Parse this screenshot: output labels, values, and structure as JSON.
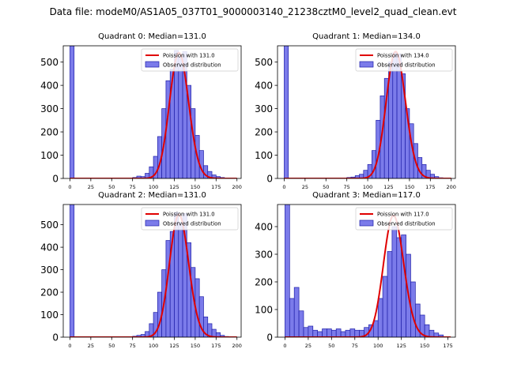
{
  "figure": {
    "title": "Data file: modeM0/AS1A05_037T01_9000003140_21238cztM0_level2_quad_clean.evt"
  },
  "colors": {
    "bar_fill": "#7b7bea",
    "bar_edge": "#1f1fa8",
    "poisson_line": "#e00000"
  },
  "chart_data": [
    {
      "type": "bar",
      "title": "Quadrant 0: Median=131.0",
      "xlim": [
        -8,
        205
      ],
      "ylim": [
        0,
        570
      ],
      "xticks": [
        0,
        25,
        50,
        75,
        100,
        125,
        150,
        175,
        200
      ],
      "yticks": [
        0,
        100,
        200,
        300,
        400,
        500
      ],
      "bin_width": 5,
      "legend": {
        "position": "top-right",
        "line_label": "Poission with 131.0",
        "hist_label": "Observed distribution"
      },
      "poisson_mean": 131.0,
      "poisson_peak": 540,
      "bins": [
        [
          0,
          570
        ],
        [
          75,
          4
        ],
        [
          80,
          10
        ],
        [
          85,
          8
        ],
        [
          90,
          22
        ],
        [
          95,
          50
        ],
        [
          100,
          95
        ],
        [
          105,
          180
        ],
        [
          110,
          300
        ],
        [
          115,
          420
        ],
        [
          120,
          470
        ],
        [
          125,
          550
        ],
        [
          130,
          520
        ],
        [
          135,
          545
        ],
        [
          140,
          400
        ],
        [
          145,
          300
        ],
        [
          150,
          185
        ],
        [
          155,
          120
        ],
        [
          160,
          55
        ],
        [
          165,
          30
        ],
        [
          170,
          15
        ],
        [
          175,
          8
        ],
        [
          180,
          4
        ]
      ]
    },
    {
      "type": "bar",
      "title": "Quadrant 1: Median=134.0",
      "xlim": [
        -8,
        205
      ],
      "ylim": [
        0,
        570
      ],
      "xticks": [
        0,
        25,
        50,
        75,
        100,
        125,
        150,
        175,
        200
      ],
      "yticks": [
        0,
        100,
        200,
        300,
        400,
        500
      ],
      "bin_width": 5,
      "legend": {
        "position": "top-right",
        "line_label": "Poission with 134.0",
        "hist_label": "Observed distribution"
      },
      "poisson_mean": 134.0,
      "poisson_peak": 545,
      "bins": [
        [
          0,
          570
        ],
        [
          75,
          4
        ],
        [
          80,
          6
        ],
        [
          85,
          12
        ],
        [
          90,
          18
        ],
        [
          95,
          35
        ],
        [
          100,
          60
        ],
        [
          105,
          120
        ],
        [
          110,
          250
        ],
        [
          115,
          355
        ],
        [
          120,
          430
        ],
        [
          125,
          500
        ],
        [
          130,
          540
        ],
        [
          135,
          535
        ],
        [
          140,
          450
        ],
        [
          145,
          300
        ],
        [
          150,
          235
        ],
        [
          155,
          150
        ],
        [
          160,
          90
        ],
        [
          165,
          60
        ],
        [
          170,
          35
        ],
        [
          175,
          18
        ],
        [
          180,
          8
        ],
        [
          185,
          3
        ]
      ]
    },
    {
      "type": "bar",
      "title": "Quadrant 2: Median=131.0",
      "xlim": [
        -8,
        205
      ],
      "ylim": [
        0,
        590
      ],
      "xticks": [
        0,
        25,
        50,
        75,
        100,
        125,
        150,
        175,
        200
      ],
      "yticks": [
        0,
        100,
        200,
        300,
        400,
        500
      ],
      "bin_width": 5,
      "legend": {
        "position": "top-right",
        "line_label": "Poission with 131.0",
        "hist_label": "Observed distribution"
      },
      "poisson_mean": 131.0,
      "poisson_peak": 545,
      "bins": [
        [
          0,
          590
        ],
        [
          75,
          4
        ],
        [
          80,
          8
        ],
        [
          85,
          12
        ],
        [
          90,
          25
        ],
        [
          95,
          60
        ],
        [
          100,
          110
        ],
        [
          105,
          200
        ],
        [
          110,
          300
        ],
        [
          115,
          430
        ],
        [
          120,
          470
        ],
        [
          125,
          555
        ],
        [
          130,
          510
        ],
        [
          135,
          550
        ],
        [
          140,
          420
        ],
        [
          145,
          310
        ],
        [
          150,
          260
        ],
        [
          155,
          180
        ],
        [
          160,
          90
        ],
        [
          165,
          60
        ],
        [
          170,
          35
        ],
        [
          175,
          20
        ],
        [
          180,
          8
        ],
        [
          185,
          3
        ]
      ]
    },
    {
      "type": "bar",
      "title": "Quadrant 3: Median=117.0",
      "xlim": [
        -8,
        183
      ],
      "ylim": [
        0,
        480
      ],
      "xticks": [
        0,
        25,
        50,
        75,
        100,
        125,
        150,
        175
      ],
      "yticks": [
        0,
        100,
        200,
        300,
        400
      ],
      "bin_width": 5,
      "legend": {
        "position": "top-right",
        "line_label": "Poission with 117.0",
        "hist_label": "Observed distribution"
      },
      "poisson_mean": 117.0,
      "poisson_peak": 440,
      "bins": [
        [
          0,
          480
        ],
        [
          5,
          140
        ],
        [
          10,
          180
        ],
        [
          15,
          95
        ],
        [
          20,
          35
        ],
        [
          25,
          40
        ],
        [
          30,
          25
        ],
        [
          35,
          20
        ],
        [
          40,
          30
        ],
        [
          45,
          30
        ],
        [
          50,
          25
        ],
        [
          55,
          30
        ],
        [
          60,
          20
        ],
        [
          65,
          25
        ],
        [
          70,
          30
        ],
        [
          75,
          25
        ],
        [
          80,
          25
        ],
        [
          85,
          35
        ],
        [
          90,
          45
        ],
        [
          95,
          60
        ],
        [
          100,
          140
        ],
        [
          105,
          220
        ],
        [
          110,
          310
        ],
        [
          115,
          400
        ],
        [
          120,
          360
        ],
        [
          125,
          370
        ],
        [
          130,
          300
        ],
        [
          135,
          200
        ],
        [
          140,
          120
        ],
        [
          145,
          80
        ],
        [
          150,
          45
        ],
        [
          155,
          25
        ],
        [
          160,
          15
        ],
        [
          165,
          8
        ]
      ]
    }
  ]
}
